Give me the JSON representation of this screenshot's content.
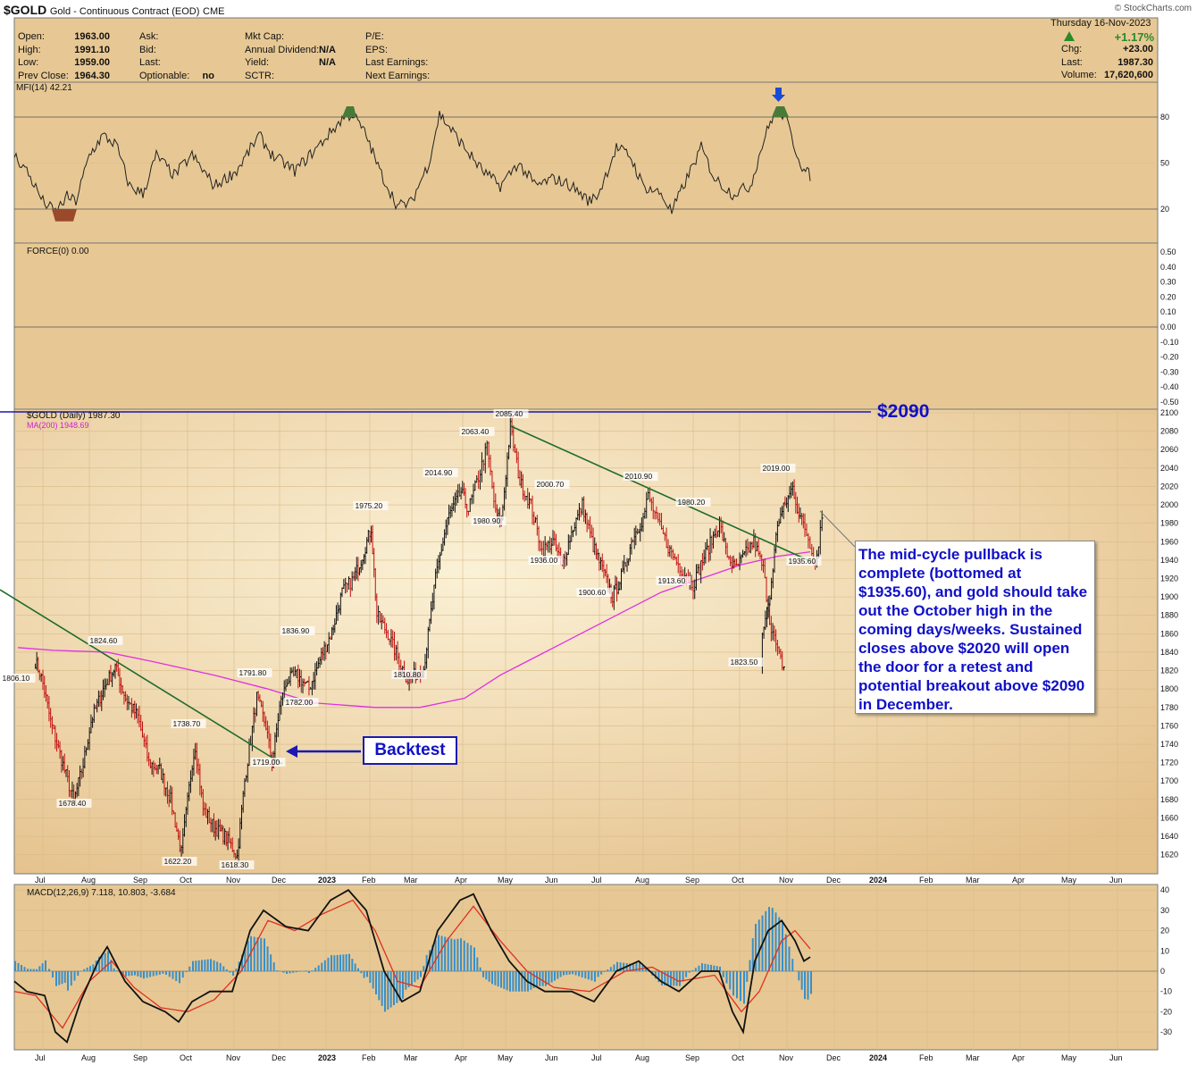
{
  "header": {
    "symbol": "$GOLD",
    "description": "Gold - Continuous Contract (EOD)",
    "exchange": "CME",
    "credit": "© StockCharts.com",
    "date": "Thursday  16-Nov-2023",
    "change_pct": "+1.17%",
    "up_color": "#2a8a2a"
  },
  "quote": {
    "col1": [
      [
        "Open:",
        "1963.00"
      ],
      [
        "High:",
        "1991.10"
      ],
      [
        "Low:",
        "1959.00"
      ],
      [
        "Prev Close:",
        "1964.30"
      ]
    ],
    "col2": [
      [
        "Ask:",
        ""
      ],
      [
        "Bid:",
        ""
      ],
      [
        "Last:",
        ""
      ],
      [
        "Optionable:",
        "no"
      ]
    ],
    "col3": [
      [
        "Mkt Cap:",
        ""
      ],
      [
        "Annual Dividend:",
        "N/A"
      ],
      [
        "Yield:",
        "N/A"
      ],
      [
        "SCTR:",
        ""
      ]
    ],
    "col4": [
      [
        "P/E:",
        ""
      ],
      [
        "EPS:",
        ""
      ],
      [
        "Last Earnings:",
        ""
      ],
      [
        "Next Earnings:",
        ""
      ]
    ],
    "col5": [
      [
        "Chg:",
        "+23.00"
      ],
      [
        "Last:",
        "1987.30"
      ],
      [
        "Volume:",
        "17,620,600"
      ]
    ]
  },
  "panels": {
    "mfi_label": "MFI(14) 42.21",
    "force_label": "FORCE(0) 0.00",
    "price_label": "$GOLD (Daily) 1987.30",
    "ma_label": "MA(200) 1948.69",
    "macd_label": "MACD(12,26,9) 7.118, 10.803, -3.684"
  },
  "annotations": {
    "level_label": "$2090",
    "backtest": "Backtest",
    "note": "The mid-cycle pullback is complete (bottomed at $1935.60), and gold should take out the October high in the coming days/weeks. Sustained closes above $2020 will open the door for a retest and potential breakout above $2090 in December."
  },
  "colors": {
    "panel_bg": "#e8c996",
    "price_bg_top": "#f4e4bf",
    "trendline": "#1e6b2e",
    "ma200": "#e030e0",
    "level_line": "#1a1ab0",
    "macd_line": "#111111",
    "signal_line": "#e03020",
    "histogram": "#3a8fc8",
    "mfi_overbought": "#4a7a3a",
    "mfi_oversold": "#9a4a2a",
    "arrow": "#1a4ad8"
  },
  "chart_data": [
    {
      "type": "line",
      "name": "mfi",
      "title": "MFI(14) 42.21",
      "ylim": [
        0,
        100
      ],
      "yticks": [
        20,
        50,
        80
      ],
      "note": "Money Flow Index panel"
    },
    {
      "type": "line",
      "name": "force",
      "title": "FORCE(0) 0.00",
      "ylim": [
        -0.5,
        0.5
      ],
      "yticks": [
        "0.50",
        "0.40",
        "0.30",
        "0.20",
        "0.10",
        "0.00",
        "-0.10",
        "-0.20",
        "-0.30",
        "-0.40",
        "-0.50"
      ]
    },
    {
      "type": "line",
      "name": "price",
      "title": "$GOLD (Daily) 1987.30",
      "ylim": [
        1610,
        2100
      ],
      "yticks": [
        1620,
        1640,
        1660,
        1680,
        1700,
        1720,
        1740,
        1760,
        1780,
        1800,
        1820,
        1840,
        1860,
        1880,
        1900,
        1920,
        1940,
        1960,
        1980,
        2000,
        2020,
        2040,
        2060,
        2080,
        2100
      ],
      "xticks": [
        "Jul",
        "Aug",
        "Sep",
        "Oct",
        "Nov",
        "Dec",
        "2023",
        "Feb",
        "Mar",
        "Apr",
        "May",
        "Jun",
        "Jul",
        "Aug",
        "Sep",
        "Oct",
        "Nov",
        "Dec",
        "2024",
        "Feb",
        "Mar",
        "Apr",
        "May",
        "Jun"
      ],
      "close_series": [
        [
          "Jun 22",
          1830
        ],
        [
          "Jun 27",
          1818
        ],
        [
          "Jul 1",
          1806
        ],
        [
          "Jul 6",
          1765
        ],
        [
          "Jul 11",
          1735
        ],
        [
          "Jul 15",
          1712
        ],
        [
          "Jul 21",
          1678
        ],
        [
          "Jul 27",
          1718
        ],
        [
          "Aug 2",
          1765
        ],
        [
          "Aug 9",
          1800
        ],
        [
          "Aug 16",
          1824
        ],
        [
          "Aug 22",
          1790
        ],
        [
          "Aug 29",
          1770
        ],
        [
          "Sep 6",
          1720
        ],
        [
          "Sep 13",
          1712
        ],
        [
          "Sep 20",
          1680
        ],
        [
          "Sep 27",
          1622
        ],
        [
          "Oct 4",
          1720
        ],
        [
          "Oct 6",
          1738
        ],
        [
          "Oct 11",
          1670
        ],
        [
          "Oct 18",
          1650
        ],
        [
          "Oct 25",
          1640
        ],
        [
          "Nov 1",
          1625
        ],
        [
          "Nov 3",
          1618
        ],
        [
          "Nov 8",
          1700
        ],
        [
          "Nov 12",
          1745
        ],
        [
          "Nov 16",
          1791
        ],
        [
          "Nov 22",
          1760
        ],
        [
          "Nov 26",
          1719
        ],
        [
          "Dec 1",
          1780
        ],
        [
          "Dec 6",
          1810
        ],
        [
          "Dec 12",
          1815
        ],
        [
          "Dec 20",
          1800
        ],
        [
          "Dec 28",
          1836
        ],
        [
          "Jan 5",
          1862
        ],
        [
          "Jan 12",
          1905
        ],
        [
          "Jan 20",
          1920
        ],
        [
          "Jan 26",
          1945
        ],
        [
          "Feb 2",
          1975
        ],
        [
          "Feb 6",
          1880
        ],
        [
          "Feb 14",
          1860
        ],
        [
          "Feb 22",
          1830
        ],
        [
          "Feb 28",
          1810
        ],
        [
          "Mar 8",
          1822
        ],
        [
          "Mar 15",
          1920
        ],
        [
          "Mar 22",
          1985
        ],
        [
          "Mar 30",
          2014
        ],
        [
          "Apr 5",
          1995
        ],
        [
          "Apr 12",
          2030
        ],
        [
          "Apr 18",
          2063
        ],
        [
          "Apr 24",
          1990
        ],
        [
          "Apr 28",
          1981
        ],
        [
          "May 4",
          2085
        ],
        [
          "May 10",
          2025
        ],
        [
          "May 17",
          2000
        ],
        [
          "May 24",
          1950
        ],
        [
          "May 31",
          1960
        ],
        [
          "Jun 7",
          1936
        ],
        [
          "Jun 14",
          1975
        ],
        [
          "Jun 20",
          2000
        ],
        [
          "Jun 27",
          1955
        ],
        [
          "Jul 3",
          1930
        ],
        [
          "Jul 10",
          1900
        ],
        [
          "Jul 17",
          1925
        ],
        [
          "Jul 24",
          1965
        ],
        [
          "Jul 31",
          1985
        ],
        [
          "Aug 4",
          2010
        ],
        [
          "Aug 10",
          1980
        ],
        [
          "Aug 17",
          1950
        ],
        [
          "Aug 24",
          1930
        ],
        [
          "Aug 31",
          1913
        ],
        [
          "Sep 7",
          1940
        ],
        [
          "Sep 14",
          1965
        ],
        [
          "Sep 18",
          1980
        ],
        [
          "Sep 22",
          1950
        ],
        [
          "Sep 28",
          1930
        ],
        [
          "Oct 4",
          1945
        ],
        [
          "Oct 10",
          1960
        ],
        [
          "Oct 16",
          1930
        ],
        [
          "Oct 20",
          1875
        ],
        [
          "Oct 25",
          1840
        ],
        [
          "Oct 29",
          1823
        ],
        [
          "Nov 2",
          1860
        ],
        [
          "Nov 7",
          1900
        ],
        [
          "Nov 12",
          1980
        ],
        [
          "Nov 17",
          2000
        ],
        [
          "Nov 22",
          2019
        ],
        [
          "Nov 26",
          1990
        ],
        [
          "Nov 30",
          1975
        ],
        [
          "Dec 4",
          1952
        ],
        [
          "Dec 8",
          1935
        ],
        [
          "Dec 12",
          1960
        ],
        [
          "Dec 16",
          1987
        ]
      ],
      "price_labels": [
        {
          "label": "1806.10"
        },
        {
          "label": "1824.60"
        },
        {
          "label": "1678.40"
        },
        {
          "label": "1738.70"
        },
        {
          "label": "1622.20"
        },
        {
          "label": "1618.30"
        },
        {
          "label": "1791.80"
        },
        {
          "label": "1836.90"
        },
        {
          "label": "1782.00"
        },
        {
          "label": "1719.00"
        },
        {
          "label": "1975.20"
        },
        {
          "label": "1810.80"
        },
        {
          "label": "2014.90"
        },
        {
          "label": "2063.40"
        },
        {
          "label": "1980.90"
        },
        {
          "label": "2085.40"
        },
        {
          "label": "2000.70"
        },
        {
          "label": "1936.00"
        },
        {
          "label": "1900.60"
        },
        {
          "label": "2010.90"
        },
        {
          "label": "1913.60"
        },
        {
          "label": "1980.20"
        },
        {
          "label": "1823.50"
        },
        {
          "label": "2019.00"
        },
        {
          "label": "1935.60"
        }
      ],
      "horizontal_level": 2090
    },
    {
      "type": "line",
      "name": "macd",
      "title": "MACD(12,26,9) 7.118, 10.803, -3.684",
      "ylim": [
        -35,
        40
      ],
      "yticks": [
        40,
        30,
        20,
        10,
        0,
        -10,
        -20,
        -30
      ]
    }
  ]
}
